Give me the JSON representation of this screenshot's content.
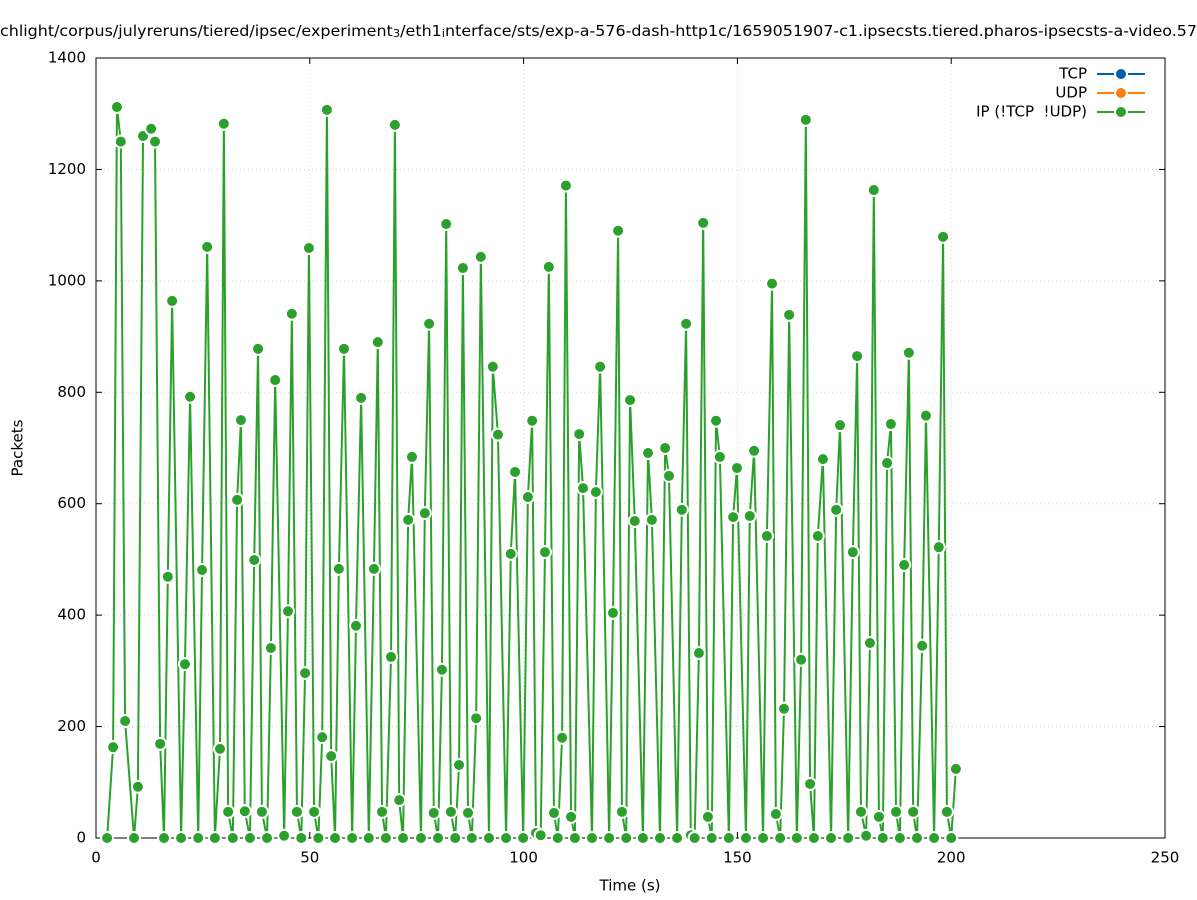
{
  "chart_data": {
    "type": "line",
    "title": [
      {
        "text": "chlight/corpus/julyreruns/tiered/ipsec/experiment"
      },
      {
        "text": "3",
        "sub": true
      },
      {
        "text": "/eth1"
      },
      {
        "text": "i",
        "sub": true
      },
      {
        "text": "nterface/sts/exp-a-576-dash-http1c/1659051907-c1.ipsecsts.tiered.pharos-ipsecsts-a-video.57"
      }
    ],
    "x_label": "Time (s)",
    "y_label": "Packets",
    "xlim": [
      0,
      250
    ],
    "xticks": [
      0,
      50,
      100,
      150,
      200,
      250
    ],
    "ylim": [
      0,
      1400
    ],
    "yticks": [
      0,
      200,
      400,
      600,
      800,
      1000,
      1200,
      1400
    ],
    "grid": true,
    "legend": "top-right",
    "series": [
      {
        "name": "TCP",
        "color": "#0060ad",
        "x": [],
        "values": []
      },
      {
        "name": "UDP",
        "color": "#ff7f0e",
        "x": [],
        "values": []
      },
      {
        "name": "IP (!TCP  !UDP)",
        "color": "#2ca02c",
        "x": [
          2.6,
          4,
          4.9,
          5.8,
          6.8,
          8.9,
          9.8,
          11,
          12.9,
          13.8,
          15,
          15.9,
          16.8,
          17.8,
          19.9,
          20.8,
          22,
          23.9,
          24.8,
          26,
          27.8,
          29,
          29.9,
          30.9,
          32,
          33,
          33.9,
          34.8,
          36,
          37,
          37.9,
          38.8,
          40,
          40.9,
          41.9,
          44,
          44.9,
          45.8,
          47,
          48,
          48.9,
          49.8,
          51,
          52,
          52.9,
          54,
          55,
          55.9,
          56.8,
          58,
          59.9,
          60.8,
          62,
          63.8,
          65,
          65.9,
          66.9,
          67.8,
          69,
          69.9,
          70.9,
          71.8,
          73,
          73.9,
          76,
          76.9,
          77.9,
          79,
          80,
          80.9,
          81.9,
          83,
          84,
          84.9,
          85.8,
          87,
          87.9,
          88.9,
          90,
          91.9,
          92.8,
          94,
          95.9,
          97,
          98,
          99.9,
          101,
          102,
          102.9,
          104,
          105,
          105.9,
          107.1,
          108,
          109,
          109.9,
          111.1,
          112,
          113,
          113.9,
          116,
          116.9,
          117.9,
          120,
          120.9,
          122.1,
          123,
          124,
          124.9,
          126,
          127.9,
          129.1,
          130,
          131.9,
          133.1,
          134,
          135.9,
          137,
          138,
          139.1,
          140,
          141,
          142,
          143.1,
          144,
          145,
          145.9,
          148,
          149,
          149.9,
          152,
          152.9,
          153.9,
          156,
          156.9,
          158.1,
          159,
          160,
          160.9,
          162.1,
          163.9,
          164.9,
          166,
          167,
          167.9,
          168.8,
          170,
          171.9,
          173.1,
          174,
          175.9,
          177,
          178,
          178.9,
          180.1,
          181,
          181.9,
          183.1,
          184,
          185,
          185.9,
          187.1,
          188,
          189,
          190.1,
          191.1,
          192,
          193.2,
          194.1,
          196,
          197.1,
          198.1,
          199,
          200,
          201.1
        ],
        "values": [
          0,
          163,
          1312,
          1250,
          210,
          0,
          92,
          1260,
          1273,
          1250,
          169,
          0,
          469,
          964,
          0,
          312,
          792,
          0,
          481,
          1061,
          0,
          160,
          1282,
          47,
          0,
          607,
          750,
          48,
          0,
          499,
          878,
          47,
          0,
          341,
          822,
          4,
          407,
          941,
          47,
          0,
          296,
          1059,
          47,
          0,
          181,
          1307,
          147,
          0,
          483,
          878,
          0,
          381,
          790,
          0,
          483,
          890,
          47,
          0,
          325,
          1280,
          68,
          0,
          571,
          684,
          0,
          583,
          923,
          45,
          0,
          302,
          1102,
          47,
          0,
          131,
          1023,
          45,
          0,
          215,
          1043,
          0,
          846,
          724,
          0,
          510,
          657,
          0,
          612,
          749,
          9,
          5,
          513,
          1025,
          45,
          0,
          180,
          1171,
          38,
          0,
          725,
          628,
          0,
          621,
          846,
          0,
          404,
          1090,
          47,
          0,
          786,
          569,
          0,
          691,
          571,
          0,
          700,
          650,
          0,
          589,
          923,
          5,
          0,
          332,
          1104,
          38,
          0,
          749,
          684,
          0,
          576,
          664,
          0,
          578,
          695,
          0,
          542,
          995,
          43,
          0,
          232,
          939,
          0,
          320,
          1289,
          97,
          0,
          542,
          680,
          0,
          589,
          741,
          0,
          513,
          865,
          47,
          4,
          350,
          1163,
          38,
          0,
          673,
          743,
          47,
          0,
          490,
          871,
          47,
          0,
          345,
          758,
          0,
          522,
          1079,
          47,
          0,
          124
        ]
      }
    ]
  }
}
